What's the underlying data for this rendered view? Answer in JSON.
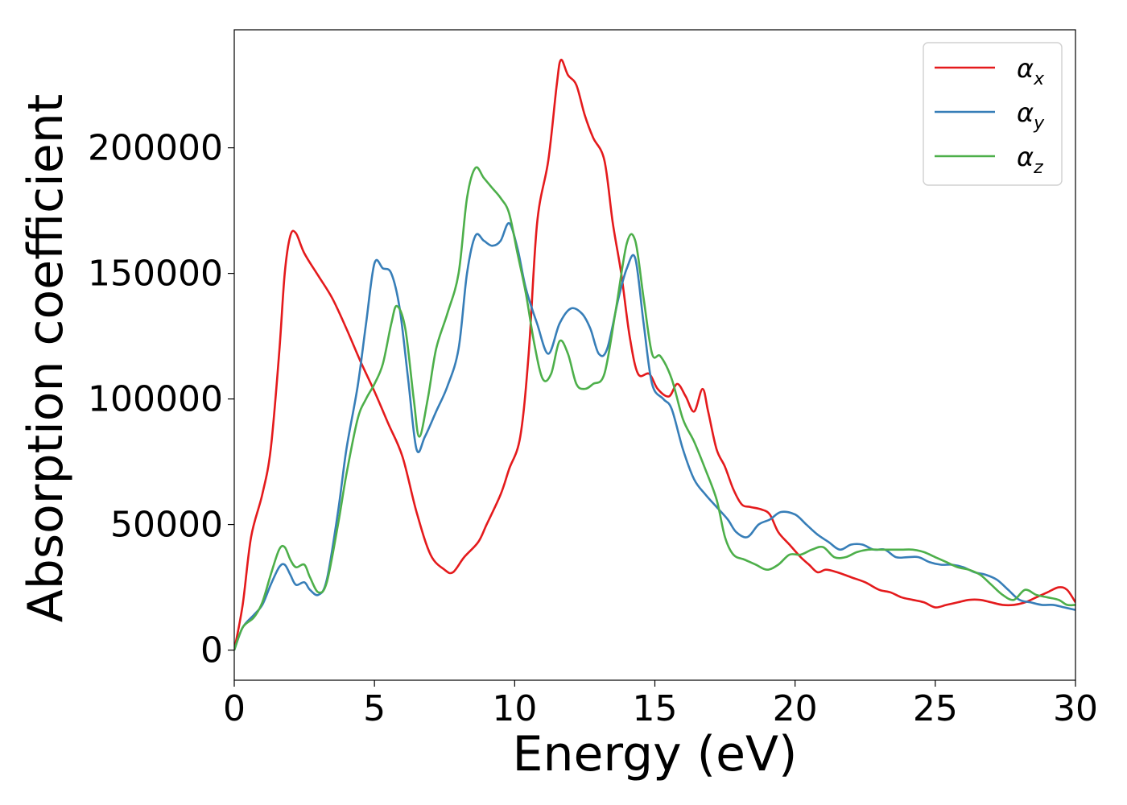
{
  "chart_data": {
    "type": "line",
    "xlabel": "Energy (eV)",
    "ylabel": "Absorption coefficient",
    "xlim": [
      0,
      30
    ],
    "ylim": [
      -12000,
      247000
    ],
    "x_ticks": [
      0,
      5,
      10,
      15,
      20,
      25,
      30
    ],
    "y_ticks": [
      0,
      50000,
      100000,
      150000,
      200000
    ],
    "grid": false,
    "legend_placement": "top-right",
    "series": [
      {
        "name": "α_x",
        "name_main": "α",
        "name_sub": "x",
        "color": "#e41a1c",
        "points": [
          [
            0,
            0
          ],
          [
            0.3,
            18000
          ],
          [
            0.6,
            45000
          ],
          [
            1.0,
            62000
          ],
          [
            1.3,
            80000
          ],
          [
            1.6,
            118000
          ],
          [
            1.8,
            150000
          ],
          [
            2.0,
            165000
          ],
          [
            2.2,
            166000
          ],
          [
            2.5,
            158000
          ],
          [
            3.0,
            149000
          ],
          [
            3.5,
            140000
          ],
          [
            4.0,
            128000
          ],
          [
            4.5,
            115000
          ],
          [
            5.0,
            103000
          ],
          [
            5.5,
            90000
          ],
          [
            6.0,
            77000
          ],
          [
            6.5,
            55000
          ],
          [
            7.0,
            38000
          ],
          [
            7.5,
            32000
          ],
          [
            7.8,
            31000
          ],
          [
            8.2,
            37000
          ],
          [
            8.7,
            43000
          ],
          [
            9.0,
            50000
          ],
          [
            9.5,
            62000
          ],
          [
            9.8,
            72000
          ],
          [
            10.2,
            85000
          ],
          [
            10.5,
            118000
          ],
          [
            10.8,
            170000
          ],
          [
            11.2,
            195000
          ],
          [
            11.5,
            225000
          ],
          [
            11.65,
            235000
          ],
          [
            11.9,
            229000
          ],
          [
            12.2,
            225000
          ],
          [
            12.5,
            213000
          ],
          [
            12.8,
            204000
          ],
          [
            13.2,
            195000
          ],
          [
            13.5,
            170000
          ],
          [
            13.8,
            150000
          ],
          [
            14.1,
            125000
          ],
          [
            14.4,
            110000
          ],
          [
            14.8,
            110000
          ],
          [
            15.1,
            104000
          ],
          [
            15.5,
            101000
          ],
          [
            15.8,
            106000
          ],
          [
            16.1,
            101000
          ],
          [
            16.4,
            95000
          ],
          [
            16.7,
            104000
          ],
          [
            16.9,
            95000
          ],
          [
            17.2,
            80000
          ],
          [
            17.5,
            73000
          ],
          [
            17.8,
            64000
          ],
          [
            18.1,
            58000
          ],
          [
            18.4,
            57000
          ],
          [
            18.8,
            56000
          ],
          [
            19.1,
            54000
          ],
          [
            19.4,
            47000
          ],
          [
            19.8,
            42000
          ],
          [
            20.2,
            37000
          ],
          [
            20.5,
            34000
          ],
          [
            20.8,
            31000
          ],
          [
            21.1,
            32000
          ],
          [
            21.5,
            31000
          ],
          [
            22.0,
            29000
          ],
          [
            22.5,
            27000
          ],
          [
            23.0,
            24000
          ],
          [
            23.4,
            23000
          ],
          [
            23.8,
            21000
          ],
          [
            24.2,
            20000
          ],
          [
            24.6,
            19000
          ],
          [
            25.0,
            17000
          ],
          [
            25.4,
            18000
          ],
          [
            25.8,
            19000
          ],
          [
            26.2,
            20000
          ],
          [
            26.6,
            20000
          ],
          [
            27.0,
            19000
          ],
          [
            27.4,
            18000
          ],
          [
            27.8,
            18000
          ],
          [
            28.2,
            19000
          ],
          [
            28.6,
            21000
          ],
          [
            29.0,
            23000
          ],
          [
            29.4,
            25000
          ],
          [
            29.7,
            24000
          ],
          [
            30,
            19000
          ]
        ]
      },
      {
        "name": "α_y",
        "name_main": "α",
        "name_sub": "y",
        "color": "#377eb8",
        "points": [
          [
            0,
            0
          ],
          [
            0.3,
            9000
          ],
          [
            0.7,
            14000
          ],
          [
            1.0,
            18000
          ],
          [
            1.3,
            26000
          ],
          [
            1.6,
            33000
          ],
          [
            1.8,
            34000
          ],
          [
            2.0,
            30000
          ],
          [
            2.2,
            26000
          ],
          [
            2.5,
            27000
          ],
          [
            2.7,
            24000
          ],
          [
            3.0,
            22000
          ],
          [
            3.3,
            28000
          ],
          [
            3.7,
            55000
          ],
          [
            4.0,
            80000
          ],
          [
            4.4,
            105000
          ],
          [
            4.7,
            130000
          ],
          [
            5.0,
            154000
          ],
          [
            5.3,
            152000
          ],
          [
            5.6,
            150000
          ],
          [
            5.9,
            136000
          ],
          [
            6.2,
            108000
          ],
          [
            6.5,
            80000
          ],
          [
            6.8,
            85000
          ],
          [
            7.2,
            95000
          ],
          [
            7.6,
            105000
          ],
          [
            8.0,
            120000
          ],
          [
            8.3,
            150000
          ],
          [
            8.6,
            165000
          ],
          [
            8.9,
            163000
          ],
          [
            9.2,
            161000
          ],
          [
            9.5,
            163000
          ],
          [
            9.8,
            170000
          ],
          [
            10.1,
            160000
          ],
          [
            10.4,
            144000
          ],
          [
            10.8,
            130000
          ],
          [
            11.2,
            118000
          ],
          [
            11.6,
            130000
          ],
          [
            12.0,
            136000
          ],
          [
            12.4,
            134000
          ],
          [
            12.7,
            128000
          ],
          [
            13.0,
            118000
          ],
          [
            13.3,
            120000
          ],
          [
            13.7,
            140000
          ],
          [
            14.0,
            152000
          ],
          [
            14.3,
            156000
          ],
          [
            14.6,
            130000
          ],
          [
            14.9,
            106000
          ],
          [
            15.3,
            100000
          ],
          [
            15.6,
            96000
          ],
          [
            16.0,
            80000
          ],
          [
            16.4,
            68000
          ],
          [
            16.8,
            62000
          ],
          [
            17.2,
            57000
          ],
          [
            17.6,
            52000
          ],
          [
            17.9,
            47000
          ],
          [
            18.3,
            45000
          ],
          [
            18.7,
            50000
          ],
          [
            19.1,
            52000
          ],
          [
            19.5,
            55000
          ],
          [
            20.0,
            54000
          ],
          [
            20.4,
            50000
          ],
          [
            20.8,
            46000
          ],
          [
            21.2,
            43000
          ],
          [
            21.6,
            40000
          ],
          [
            22.0,
            42000
          ],
          [
            22.4,
            42000
          ],
          [
            22.8,
            40000
          ],
          [
            23.2,
            40000
          ],
          [
            23.6,
            37000
          ],
          [
            24.0,
            37000
          ],
          [
            24.4,
            37000
          ],
          [
            24.8,
            35000
          ],
          [
            25.2,
            34000
          ],
          [
            25.6,
            34000
          ],
          [
            26.0,
            33000
          ],
          [
            26.4,
            31000
          ],
          [
            26.8,
            30000
          ],
          [
            27.2,
            28000
          ],
          [
            27.6,
            24000
          ],
          [
            28.0,
            20000
          ],
          [
            28.4,
            19000
          ],
          [
            28.8,
            18000
          ],
          [
            29.2,
            18000
          ],
          [
            29.6,
            17000
          ],
          [
            30,
            16000
          ]
        ]
      },
      {
        "name": "α_z",
        "name_main": "α",
        "name_sub": "z",
        "color": "#4daf4a",
        "points": [
          [
            0,
            0
          ],
          [
            0.3,
            9000
          ],
          [
            0.7,
            13000
          ],
          [
            1.0,
            19000
          ],
          [
            1.3,
            30000
          ],
          [
            1.6,
            40000
          ],
          [
            1.8,
            41000
          ],
          [
            2.0,
            36000
          ],
          [
            2.2,
            33000
          ],
          [
            2.5,
            34000
          ],
          [
            2.7,
            29000
          ],
          [
            3.0,
            23000
          ],
          [
            3.3,
            27000
          ],
          [
            3.7,
            50000
          ],
          [
            4.0,
            70000
          ],
          [
            4.4,
            92000
          ],
          [
            4.7,
            100000
          ],
          [
            5.0,
            106000
          ],
          [
            5.3,
            114000
          ],
          [
            5.6,
            130000
          ],
          [
            5.8,
            137000
          ],
          [
            6.1,
            128000
          ],
          [
            6.4,
            100000
          ],
          [
            6.6,
            85000
          ],
          [
            6.9,
            100000
          ],
          [
            7.2,
            120000
          ],
          [
            7.6,
            134000
          ],
          [
            8.0,
            150000
          ],
          [
            8.3,
            180000
          ],
          [
            8.6,
            192000
          ],
          [
            8.9,
            188000
          ],
          [
            9.2,
            184000
          ],
          [
            9.5,
            180000
          ],
          [
            9.8,
            174000
          ],
          [
            10.1,
            158000
          ],
          [
            10.4,
            142000
          ],
          [
            10.7,
            122000
          ],
          [
            11.0,
            108000
          ],
          [
            11.3,
            110000
          ],
          [
            11.6,
            123000
          ],
          [
            11.9,
            118000
          ],
          [
            12.2,
            106000
          ],
          [
            12.5,
            104000
          ],
          [
            12.8,
            106000
          ],
          [
            13.2,
            110000
          ],
          [
            13.6,
            135000
          ],
          [
            14.0,
            162000
          ],
          [
            14.3,
            163000
          ],
          [
            14.6,
            140000
          ],
          [
            14.9,
            118000
          ],
          [
            15.2,
            117000
          ],
          [
            15.6,
            108000
          ],
          [
            16.0,
            92000
          ],
          [
            16.4,
            83000
          ],
          [
            16.8,
            72000
          ],
          [
            17.2,
            60000
          ],
          [
            17.5,
            45000
          ],
          [
            17.8,
            38000
          ],
          [
            18.2,
            36000
          ],
          [
            18.6,
            34000
          ],
          [
            19.0,
            32000
          ],
          [
            19.4,
            34000
          ],
          [
            19.8,
            38000
          ],
          [
            20.2,
            38000
          ],
          [
            20.6,
            40000
          ],
          [
            21.0,
            41000
          ],
          [
            21.4,
            37000
          ],
          [
            21.8,
            37000
          ],
          [
            22.2,
            39000
          ],
          [
            22.6,
            40000
          ],
          [
            23.0,
            40000
          ],
          [
            23.4,
            40000
          ],
          [
            23.8,
            40000
          ],
          [
            24.2,
            40000
          ],
          [
            24.6,
            39000
          ],
          [
            25.0,
            37000
          ],
          [
            25.4,
            35000
          ],
          [
            25.8,
            33000
          ],
          [
            26.2,
            32000
          ],
          [
            26.6,
            30000
          ],
          [
            27.0,
            26000
          ],
          [
            27.4,
            22000
          ],
          [
            27.8,
            20000
          ],
          [
            28.2,
            24000
          ],
          [
            28.6,
            22000
          ],
          [
            29.0,
            21000
          ],
          [
            29.4,
            20000
          ],
          [
            29.7,
            18000
          ],
          [
            30,
            18000
          ]
        ]
      }
    ]
  }
}
